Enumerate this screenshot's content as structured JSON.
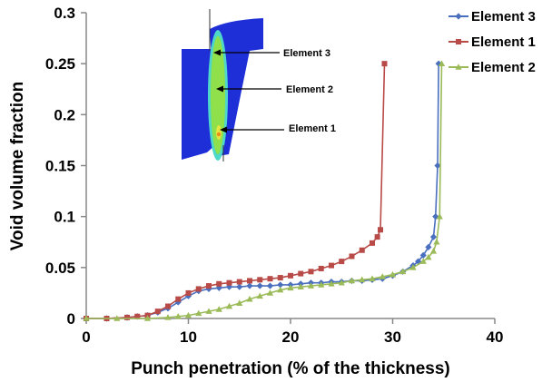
{
  "chart_data": {
    "type": "line",
    "title": "",
    "xlabel": "Punch penetration (% of the thickness)",
    "ylabel": "Void volume fraction",
    "xlim": [
      0,
      40
    ],
    "ylim": [
      0,
      0.3
    ],
    "xticks": [
      "0",
      "10",
      "20",
      "30",
      "40"
    ],
    "yticks": [
      "0",
      "0.05",
      "0.1",
      "0.15",
      "0.2",
      "0.25",
      "0.3"
    ],
    "grid": false,
    "legend_position": "top-right",
    "series": [
      {
        "name": "Element 3",
        "color": "#4a6fbf",
        "marker": "diamond",
        "x": [
          0,
          2,
          4,
          5,
          6,
          7,
          8,
          9,
          10,
          11,
          12,
          13,
          14,
          15,
          16,
          17,
          18,
          19,
          20,
          21,
          22,
          23,
          24,
          25,
          26,
          27,
          28,
          29,
          30,
          31,
          32,
          32.5,
          33,
          33.5,
          34,
          34.2,
          34.4,
          34.5
        ],
        "y": [
          0,
          0,
          0.001,
          0.002,
          0.003,
          0.006,
          0.01,
          0.016,
          0.022,
          0.027,
          0.029,
          0.03,
          0.031,
          0.031,
          0.032,
          0.032,
          0.032,
          0.033,
          0.033,
          0.034,
          0.035,
          0.035,
          0.036,
          0.036,
          0.037,
          0.037,
          0.038,
          0.039,
          0.042,
          0.046,
          0.052,
          0.056,
          0.062,
          0.07,
          0.08,
          0.1,
          0.15,
          0.25
        ]
      },
      {
        "name": "Element 1",
        "color": "#b84a47",
        "marker": "square",
        "x": [
          0,
          2,
          4,
          5,
          6,
          7,
          8,
          9,
          10,
          11,
          12,
          13,
          14,
          15,
          16,
          17,
          18,
          19,
          20,
          21,
          22,
          23,
          24,
          25,
          26,
          27,
          28,
          28.5,
          28.8,
          29.2
        ],
        "y": [
          0,
          0,
          0.001,
          0.002,
          0.003,
          0.007,
          0.012,
          0.019,
          0.025,
          0.029,
          0.032,
          0.034,
          0.035,
          0.036,
          0.037,
          0.038,
          0.039,
          0.04,
          0.042,
          0.044,
          0.046,
          0.049,
          0.052,
          0.056,
          0.061,
          0.067,
          0.074,
          0.08,
          0.087,
          0.25
        ]
      },
      {
        "name": "Element 2",
        "color": "#9bbb59",
        "marker": "triangle",
        "x": [
          0,
          3,
          6,
          8,
          9,
          10,
          11,
          12,
          13,
          14,
          15,
          16,
          17,
          18,
          19,
          20,
          21,
          22,
          23,
          24,
          25,
          26,
          27,
          28,
          29,
          30,
          31,
          32,
          33,
          33.5,
          34,
          34.3,
          34.6,
          34.8
        ],
        "y": [
          0,
          0,
          0,
          0.001,
          0.002,
          0.003,
          0.005,
          0.007,
          0.009,
          0.012,
          0.015,
          0.019,
          0.022,
          0.025,
          0.028,
          0.03,
          0.031,
          0.032,
          0.033,
          0.034,
          0.035,
          0.037,
          0.038,
          0.039,
          0.041,
          0.043,
          0.046,
          0.05,
          0.056,
          0.06,
          0.066,
          0.075,
          0.1,
          0.25
        ]
      }
    ],
    "annotations": [
      "Element 3",
      "Element 2",
      "Element 1"
    ]
  },
  "inset": {
    "colors": {
      "die_blue": "#1f2fd8",
      "zone_cyan": "#4ed8c8",
      "zone_green": "#8fe04a",
      "zone_yellow": "#e6e640",
      "zone_orange": "#f08a20"
    }
  }
}
